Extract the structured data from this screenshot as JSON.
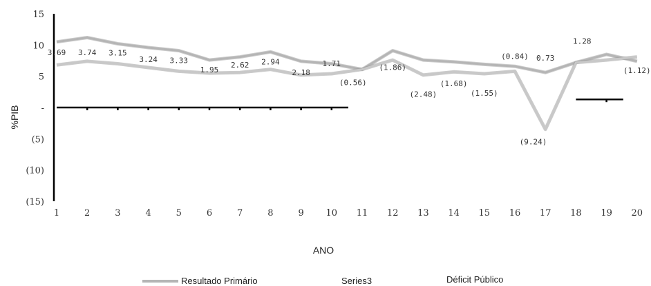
{
  "chart_data": {
    "type": "line",
    "ylabel": "%PIB",
    "xlabel": "ANO",
    "x": [
      1,
      2,
      3,
      4,
      5,
      6,
      7,
      8,
      9,
      10,
      11,
      12,
      13,
      14,
      15,
      16,
      17,
      18,
      19,
      20
    ],
    "ylim": [
      -15,
      15
    ],
    "yticks": [
      {
        "value": 15,
        "label": "15"
      },
      {
        "value": 10,
        "label": "10"
      },
      {
        "value": 5,
        "label": "5"
      },
      {
        "value": 0,
        "label": "-"
      },
      {
        "value": -5,
        "label": "(5)"
      },
      {
        "value": -10,
        "label": "(10)"
      },
      {
        "value": -15,
        "label": "(15)"
      }
    ],
    "xticks": [
      "1",
      "2",
      "3",
      "4",
      "5",
      "6",
      "7",
      "8",
      "9",
      "10",
      "11",
      "12",
      "13",
      "14",
      "15",
      "16",
      "17",
      "18",
      "19",
      "20"
    ],
    "series": [
      {
        "name": "Resultado Primário",
        "color": "#b5b5b5",
        "values": [
          10.5,
          11.2,
          10.2,
          9.6,
          9.1,
          7.6,
          8.1,
          8.9,
          7.4,
          7.0,
          6.1,
          9.1,
          7.6,
          7.3,
          6.9,
          6.6,
          5.6,
          7.2,
          8.5,
          7.4
        ]
      },
      {
        "name": "Déficit Público",
        "color": "#c8c8c8",
        "values": [
          6.8,
          7.4,
          7.0,
          6.4,
          5.8,
          5.5,
          5.6,
          6.1,
          5.2,
          5.4,
          6.1,
          7.6,
          5.2,
          5.7,
          5.4,
          5.8,
          -3.5,
          7.2,
          7.6,
          8.1
        ]
      },
      {
        "name": "Series3",
        "color": "#000000",
        "segments": [
          {
            "x": [
              1,
              11
            ],
            "values": [
              0,
              0
            ]
          },
          {
            "x": [
              18,
              20
            ],
            "values": [
              1.3,
              1.3
            ]
          }
        ]
      }
    ],
    "data_labels": [
      {
        "text": "3.69",
        "x": 1,
        "y": 8.4
      },
      {
        "text": "3.74",
        "x": 2,
        "y": 8.4
      },
      {
        "text": "3.15",
        "x": 3,
        "y": 8.3
      },
      {
        "text": "3.24",
        "x": 4,
        "y": 7.3
      },
      {
        "text": "3.33",
        "x": 5,
        "y": 7.1
      },
      {
        "text": "1.95",
        "x": 6,
        "y": 5.6
      },
      {
        "text": "2.62",
        "x": 7,
        "y": 6.4
      },
      {
        "text": "2.94",
        "x": 8,
        "y": 6.9
      },
      {
        "text": "2.18",
        "x": 9,
        "y": 5.2
      },
      {
        "text": "1.71",
        "x": 10,
        "y": 6.6
      },
      {
        "text": "(0.56)",
        "x": 10.7,
        "y": 3.6
      },
      {
        "text": "(1.86)",
        "x": 12,
        "y": 6.0
      },
      {
        "text": "(2.48)",
        "x": 13,
        "y": 1.7
      },
      {
        "text": "(1.68)",
        "x": 14,
        "y": 3.4
      },
      {
        "text": "(1.55)",
        "x": 15,
        "y": 1.9
      },
      {
        "text": "(0.84)",
        "x": 16,
        "y": 7.8
      },
      {
        "text": "0.73",
        "x": 17,
        "y": 7.5
      },
      {
        "text": "(9.24)",
        "x": 16.6,
        "y": -5.9
      },
      {
        "text": "1.28",
        "x": 18.2,
        "y": 10.2
      },
      {
        "text": "(1.12)",
        "x": 20,
        "y": 5.5
      }
    ],
    "legend": {
      "placement": "bottom",
      "entries": [
        {
          "label": "Resultado Primário",
          "swatch": true
        },
        {
          "label": "Series3",
          "swatch": false
        },
        {
          "label": "Déficit Público",
          "swatch": false
        }
      ]
    },
    "grid": false
  }
}
